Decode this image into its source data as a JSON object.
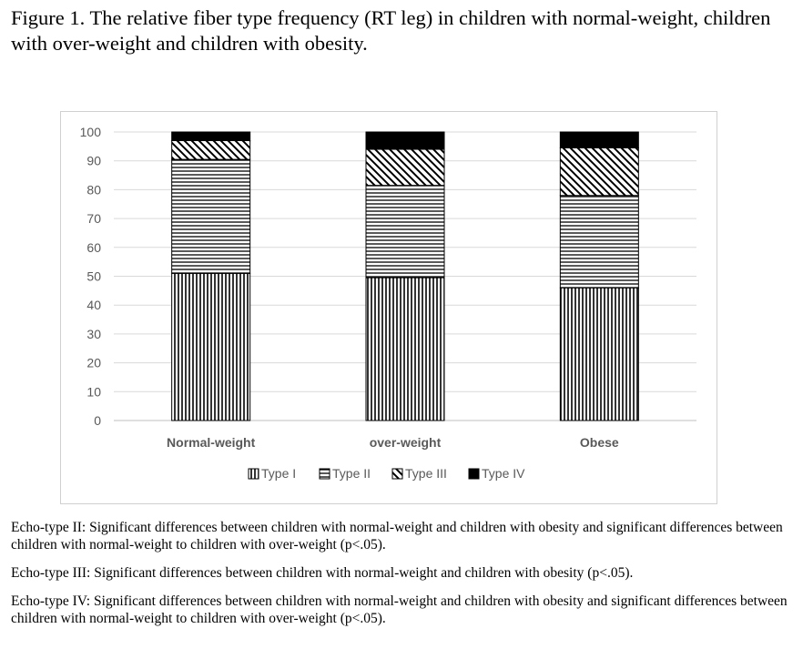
{
  "figure": {
    "title": "Figure 1. The relative fiber type frequency (RT leg) in children with normal-weight, children with over-weight and children with obesity."
  },
  "chart_data": {
    "type": "bar",
    "stacked": true,
    "categories": [
      "Normal-weight",
      "over-weight",
      "Obese"
    ],
    "series": [
      {
        "name": "Type I",
        "values": [
          51,
          49.5,
          46
        ],
        "pattern": "vertical-lines"
      },
      {
        "name": "Type II",
        "values": [
          39.5,
          32,
          32
        ],
        "pattern": "horizontal-lines"
      },
      {
        "name": "Type III",
        "values": [
          6.5,
          12.5,
          16.5
        ],
        "pattern": "diagonal-lines"
      },
      {
        "name": "Type IV",
        "values": [
          3,
          6,
          5.5
        ],
        "pattern": "solid-black"
      }
    ],
    "ylim": [
      0,
      100
    ],
    "yticks": [
      0,
      10,
      20,
      30,
      40,
      50,
      60,
      70,
      80,
      90,
      100
    ],
    "grid": true,
    "legend": "bottom",
    "xlabel": "",
    "ylabel": ""
  },
  "notes": [
    "Echo-type II: Significant differences between children with normal-weight and children with obesity and significant differences between children with normal-weight to children with over-weight (p<.05).",
    "Echo-type III: Significant differences between children with normal-weight and children with obesity (p<.05).",
    "Echo-type IV: Significant differences between children with normal-weight and children with obesity and significant differences between children with normal-weight to children with over-weight (p<.05)."
  ]
}
